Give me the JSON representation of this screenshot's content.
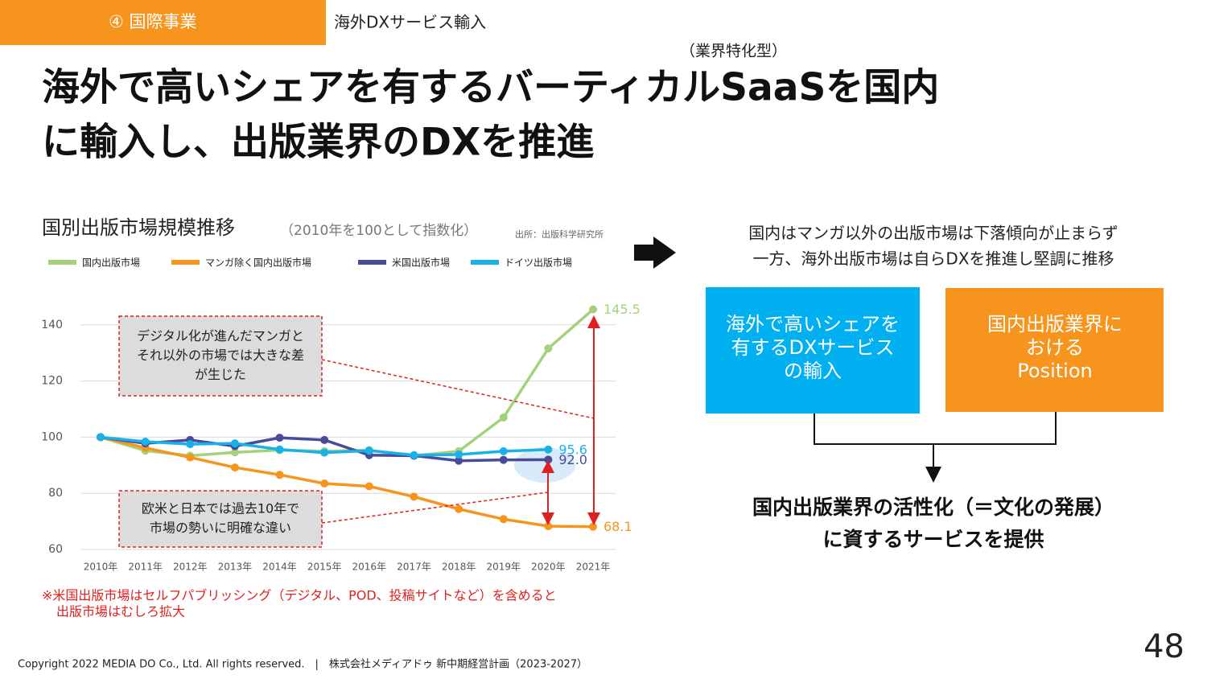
{
  "header": {
    "section": "④ 国際事業",
    "topic": "海外DXサービス輸入",
    "note": "（業界特化型）"
  },
  "title": [
    "海外で高いシェアを有するバーティカルSaaSを国内",
    "に輸入し、出版業界のDXを推進"
  ],
  "chart_data": {
    "type": "line",
    "title": "国別出版市場規模推移",
    "subtitle": "（2010年を100として指数化）",
    "source": "出所：出版科学研究所",
    "categories": [
      "2010年",
      "2011年",
      "2012年",
      "2013年",
      "2014年",
      "2015年",
      "2016年",
      "2017年",
      "2018年",
      "2019年",
      "2020年",
      "2021年"
    ],
    "series": [
      {
        "name": "国内出版市場",
        "color": "#a5d17c",
        "values": [
          100,
          95.2,
          93.4,
          94.6,
          95.4,
          95,
          95.4,
          93.4,
          95,
          107,
          131.6,
          145.5
        ],
        "value_labels": [
          null,
          null,
          null,
          null,
          null,
          null,
          null,
          null,
          null,
          null,
          null,
          "145.5"
        ]
      },
      {
        "name": "マンガ除く国内出版市場",
        "color": "#f7941d",
        "values": [
          100,
          96.2,
          92.8,
          89.2,
          86.6,
          83.5,
          82.5,
          78.8,
          74.4,
          70.8,
          68.3,
          68.1
        ],
        "value_labels": [
          null,
          null,
          null,
          null,
          null,
          null,
          null,
          null,
          null,
          null,
          null,
          "68.1"
        ]
      },
      {
        "name": "米国出版市場",
        "color": "#4a4a9a",
        "values": [
          100,
          97.8,
          99,
          96.8,
          99.8,
          99,
          93.6,
          93.4,
          91.6,
          91.9,
          92.0,
          null
        ],
        "value_labels": [
          null,
          null,
          null,
          null,
          null,
          null,
          null,
          null,
          null,
          null,
          "92.0",
          null
        ]
      },
      {
        "name": "ドイツ出版市場",
        "color": "#1ab0e8",
        "values": [
          100,
          98.4,
          97.5,
          97.8,
          95.6,
          94.5,
          95.2,
          93.6,
          93.8,
          95,
          95.6,
          null
        ],
        "value_labels": [
          null,
          null,
          null,
          null,
          null,
          null,
          null,
          null,
          null,
          null,
          "95.6",
          null
        ]
      }
    ],
    "ylim": [
      60,
      150
    ],
    "yticks": [
      60,
      80,
      100,
      120,
      140
    ],
    "grid": true,
    "annotations": [
      [
        "デジタル化が進んだマンガと",
        "それ以外の市場では大きな差",
        "が生じた"
      ],
      [
        "欧米と日本では過去10年で",
        "市場の勢いに明確な違い"
      ]
    ],
    "footnote": [
      "※米国出版市場はセルフパブリッシング（デジタル、POD、投稿サイトなど）を含めると",
      "出版市場はむしろ拡大"
    ]
  },
  "right": {
    "lead": [
      "国内はマンガ以外の出版市場は下落傾向が止まらず",
      "一方、海外出版市場は自らDXを推進し堅調に推移"
    ],
    "box_left": [
      "海外で高いシェアを",
      "有するDXサービス",
      "の輸入"
    ],
    "box_right": [
      "国内出版業界に",
      "おける",
      "Position"
    ],
    "result": [
      "国内出版業界の活性化（＝文化の発展）",
      "に資するサービスを提供"
    ]
  },
  "footer": {
    "copyright": "Copyright 2022 MEDIA DO Co., Ltd. All rights reserved.　|　株式会社メディアドゥ 新中期経営計画（2023-2027）",
    "page": "48"
  }
}
